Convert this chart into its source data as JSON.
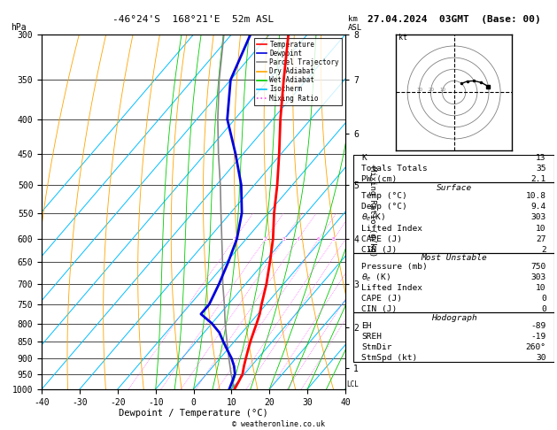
{
  "title_left": "-46°24'S  168°21'E  52m ASL",
  "title_right": "27.04.2024  03GMT  (Base: 00)",
  "xlabel": "Dewpoint / Temperature (°C)",
  "ylabel_left": "hPa",
  "pressure_levels": [
    300,
    350,
    400,
    450,
    500,
    550,
    600,
    650,
    700,
    750,
    800,
    850,
    900,
    950,
    1000
  ],
  "isotherm_color": "#00bfff",
  "dry_adiabat_color": "#ffa500",
  "wet_adiabat_color": "#00cc00",
  "mixing_ratio_color": "#ff44ff",
  "temp_color": "#ff0000",
  "dewp_color": "#0000dd",
  "parcel_color": "#888888",
  "legend_labels": [
    "Temperature",
    "Dewpoint",
    "Parcel Trajectory",
    "Dry Adiabat",
    "Wet Adiabat",
    "Isotherm",
    "Mixing Ratio"
  ],
  "legend_colors": [
    "#ff0000",
    "#0000dd",
    "#888888",
    "#ffa500",
    "#00cc00",
    "#00bfff",
    "#ff44ff"
  ],
  "legend_styles": [
    "-",
    "-",
    "-",
    "-",
    "-",
    "-",
    ":"
  ],
  "temp_profile_p": [
    1000,
    975,
    950,
    925,
    900,
    875,
    850,
    825,
    800,
    775,
    750,
    700,
    650,
    600,
    550,
    500,
    450,
    400,
    350,
    300
  ],
  "temp_profile_t": [
    10.8,
    10.2,
    9.5,
    8.1,
    6.8,
    5.5,
    4.2,
    3.0,
    1.8,
    0.5,
    -1.2,
    -4.5,
    -8.5,
    -13.0,
    -18.5,
    -24.0,
    -30.5,
    -38.0,
    -46.0,
    -55.0
  ],
  "dewp_profile_p": [
    1000,
    975,
    950,
    925,
    900,
    875,
    850,
    825,
    800,
    775,
    750,
    700,
    650,
    600,
    550,
    500,
    450,
    400,
    350,
    300
  ],
  "dewp_profile_t": [
    9.4,
    8.5,
    7.5,
    5.5,
    3.0,
    0.0,
    -3.0,
    -6.0,
    -10.0,
    -15.0,
    -15.0,
    -17.0,
    -19.5,
    -22.5,
    -27.0,
    -33.5,
    -42.0,
    -52.0,
    -60.0,
    -65.0
  ],
  "parcel_profile_p": [
    1000,
    950,
    900,
    850,
    800,
    750,
    700,
    650,
    600,
    550,
    500,
    450,
    400,
    350,
    300
  ],
  "parcel_profile_t": [
    10.8,
    6.5,
    2.3,
    -2.0,
    -6.5,
    -11.0,
    -16.0,
    -21.0,
    -26.5,
    -32.5,
    -39.0,
    -46.5,
    -54.5,
    -63.0,
    -72.0
  ],
  "mixing_ratios": [
    1,
    2,
    3,
    4,
    6,
    8,
    10,
    15,
    20,
    25
  ],
  "km_tick_pressures": [
    930,
    810,
    700,
    600,
    500,
    420,
    350,
    300
  ],
  "km_tick_labels": [
    "1",
    "2",
    "3",
    "4",
    "5",
    "6",
    "7",
    "8"
  ],
  "right_panel": {
    "K": 13,
    "Totals_Totals": 35,
    "PW_cm": 2.1,
    "Surface_Temp": 10.8,
    "Surface_Dewp": 9.4,
    "theta_e_K": 303,
    "Lifted_Index": 10,
    "CAPE_J": 27,
    "CIN_J": 2,
    "MU_Pressure_mb": 750,
    "MU_theta_e_K": 303,
    "MU_Lifted_Index": 10,
    "MU_CAPE_J": 0,
    "MU_CIN_J": 0,
    "EH": -89,
    "SREH": -19,
    "StmDir": "260°",
    "StmSpd_kt": 30
  },
  "hodo_wind_dirs": [
    260,
    250,
    240,
    230,
    220
  ],
  "hodo_wind_spds": [
    30,
    25,
    20,
    15,
    10
  ],
  "wind_barb_pressures": [
    850,
    875,
    900
  ],
  "wind_barb_dirs": [
    238,
    240,
    245
  ],
  "wind_barb_spds": [
    10,
    12,
    15
  ],
  "lcl_pressure": 985,
  "footer": "© weatheronline.co.uk"
}
